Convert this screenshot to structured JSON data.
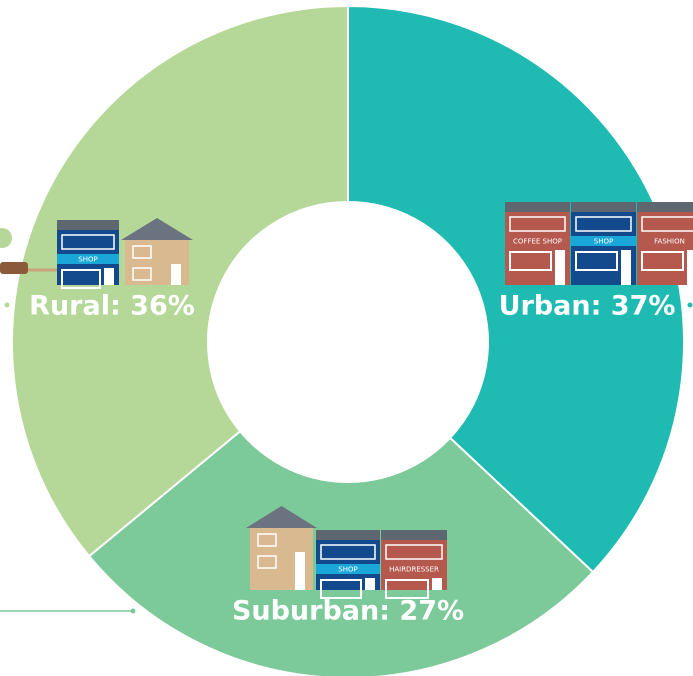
{
  "chart_data": {
    "type": "donut",
    "labels": [
      "Urban: 37%",
      "Suburban: 27%",
      "Rural: 36%"
    ],
    "values": [
      37,
      27,
      36
    ],
    "colors": [
      "#1fbab2",
      "#7cc99a",
      "#b5d898"
    ],
    "annotations": {
      "urban": [
        "COFFEE SHOP",
        "SHOP",
        "FASHION"
      ],
      "suburban": [
        "SHOP",
        "HAIRDRESSER"
      ],
      "rural": [
        "SHOP"
      ]
    }
  }
}
